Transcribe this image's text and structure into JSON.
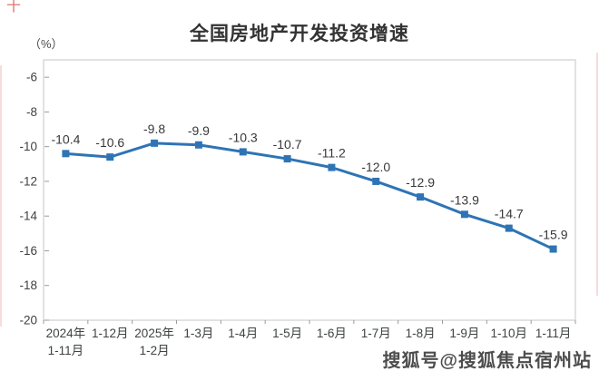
{
  "page": {
    "corner_mark": "十",
    "watermark": "搜狐号@搜狐焦点宿州站"
  },
  "chart_data": {
    "type": "line",
    "title": "全国房地产开发投资增速",
    "unit_label": "（%）",
    "categories": [
      [
        "2024年",
        "1-11月"
      ],
      [
        "1-12月"
      ],
      [
        "2025年",
        "1-2月"
      ],
      [
        "1-3月"
      ],
      [
        "1-4月"
      ],
      [
        "1-5月"
      ],
      [
        "1-6月"
      ],
      [
        "1-7月"
      ],
      [
        "1-8月"
      ],
      [
        "1-9月"
      ],
      [
        "1-10月"
      ],
      [
        "1-11月"
      ]
    ],
    "values": [
      -10.4,
      -10.6,
      -9.8,
      -9.9,
      -10.3,
      -10.7,
      -11.2,
      -12.0,
      -12.9,
      -13.9,
      -14.7,
      -15.9
    ],
    "value_labels": [
      "-10.4",
      "-10.6",
      "-9.8",
      "-9.9",
      "-10.3",
      "-10.7",
      "-11.2",
      "-12.0",
      "-12.9",
      "-13.9",
      "-14.7",
      "-15.9"
    ],
    "xlabel": "",
    "ylabel": "（%）",
    "y_axis": {
      "min": -20,
      "max": -5,
      "ticks": [
        -6,
        -8,
        -10,
        -12,
        -14,
        -16,
        -18,
        -20
      ]
    },
    "grid": false,
    "legend_position": "none",
    "marker_shape": "square",
    "colors": {
      "line": "#2E74B5",
      "marker": "#2E74B5",
      "border": "#c6c6c6",
      "tick": "#9a9a9a",
      "axis_text": "#3d4242",
      "data_label_text": "#383838",
      "title_text": "#333333",
      "watermark_text": "#3e3e3e",
      "corner_mark": "#d65a50"
    }
  }
}
